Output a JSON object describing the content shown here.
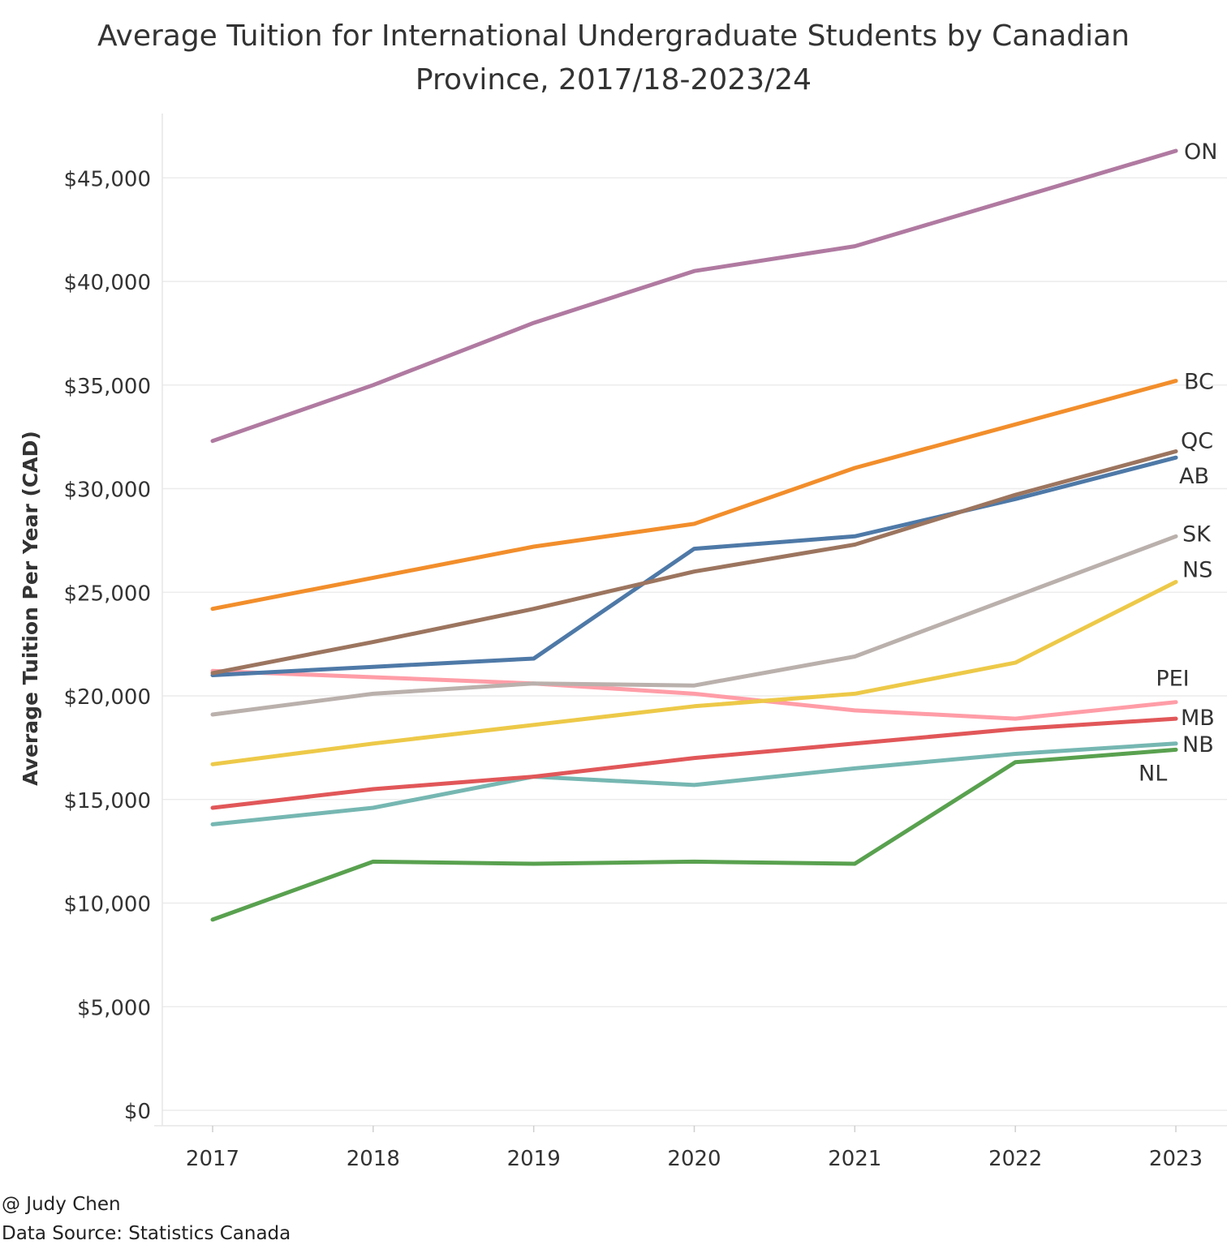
{
  "title_line1": "Average Tuition for International Undergraduate Students by Canadian",
  "title_line2": "Province, 2017/18-2023/24",
  "credit_author": "@ Judy Chen",
  "credit_source": "Data Source: Statistics Canada",
  "chart_data": {
    "type": "line",
    "ylabel": "Average Tuition Per Year (CAD)",
    "xlabel": "",
    "x": [
      2017,
      2018,
      2019,
      2020,
      2021,
      2022,
      2023
    ],
    "ylim": [
      0,
      49000
    ],
    "yticks": [
      0,
      5000,
      10000,
      15000,
      20000,
      25000,
      30000,
      35000,
      40000,
      45000
    ],
    "ytick_labels": [
      "$0",
      "$5,000",
      "$10,000",
      "$15,000",
      "$20,000",
      "$25,000",
      "$30,000",
      "$35,000",
      "$40,000",
      "$45,000"
    ],
    "grid": true,
    "series": [
      {
        "name": "ON",
        "color": "#b07aa1",
        "values": [
          32300,
          35000,
          38000,
          40500,
          41700,
          44000,
          46300
        ]
      },
      {
        "name": "BC",
        "color": "#f28e2b",
        "values": [
          24200,
          25700,
          27200,
          28300,
          31000,
          33100,
          35200
        ]
      },
      {
        "name": "QC",
        "color": "#9c755f",
        "values": [
          21100,
          22600,
          24200,
          26000,
          27300,
          29700,
          31800
        ]
      },
      {
        "name": "AB",
        "color": "#4e79a7",
        "values": [
          21000,
          21400,
          21800,
          27100,
          27700,
          29500,
          31500
        ]
      },
      {
        "name": "SK",
        "color": "#bab0ac",
        "values": [
          19100,
          20100,
          20600,
          20500,
          21900,
          24800,
          27700
        ]
      },
      {
        "name": "NS",
        "color": "#edc948",
        "values": [
          16700,
          17700,
          18600,
          19500,
          20100,
          21600,
          25500
        ]
      },
      {
        "name": "PEI",
        "color": "#ff9da7",
        "values": [
          21200,
          20900,
          20600,
          20100,
          19300,
          18900,
          19700
        ]
      },
      {
        "name": "MB",
        "color": "#e15759",
        "values": [
          14600,
          15500,
          16100,
          17000,
          17700,
          18400,
          18900
        ]
      },
      {
        "name": "NB",
        "color": "#76b7b2",
        "values": [
          13800,
          14600,
          16100,
          15700,
          16500,
          17200,
          17700
        ]
      },
      {
        "name": "NL",
        "color": "#59a14f",
        "values": [
          9200,
          12000,
          11900,
          12000,
          11900,
          16800,
          17400
        ]
      }
    ]
  }
}
